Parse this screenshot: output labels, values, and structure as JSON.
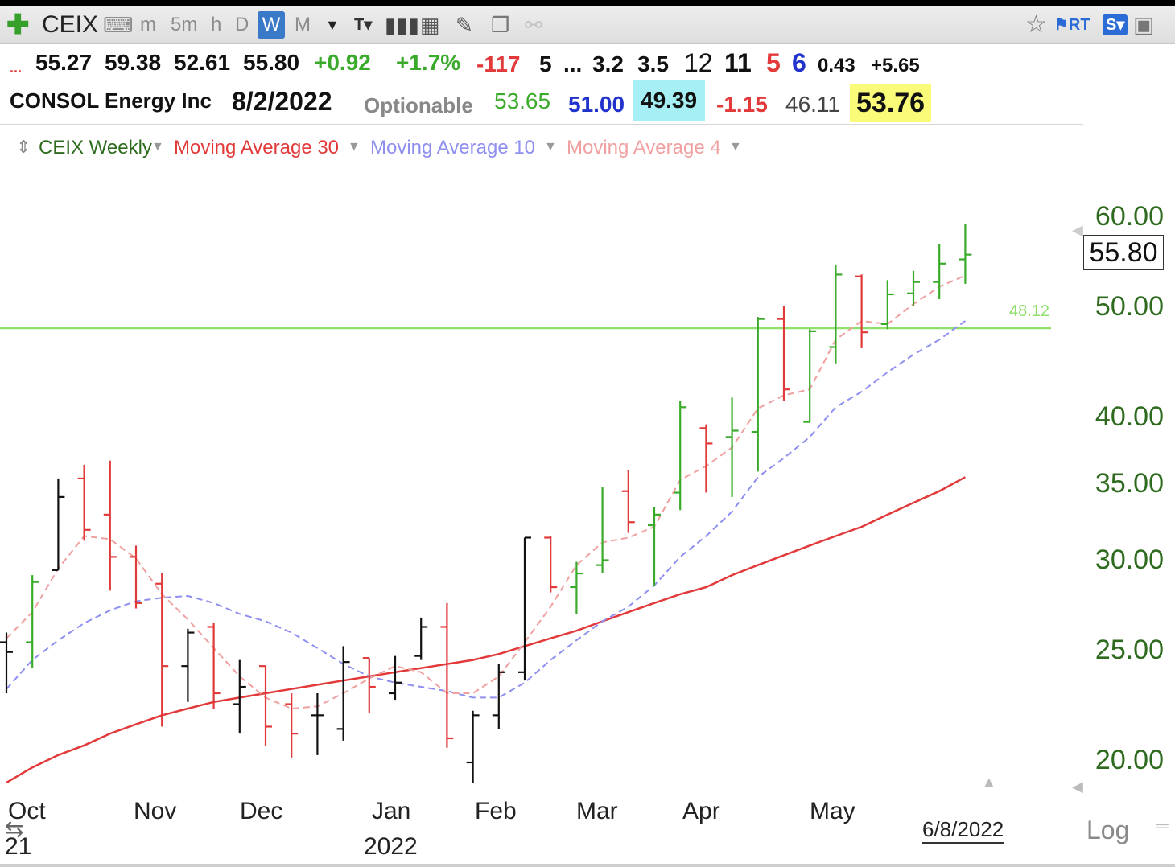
{
  "toolbar": {
    "symbol": "CEIX",
    "intervals": [
      "m",
      "5m",
      "h",
      "D",
      "W",
      "M"
    ],
    "selected_interval": "W",
    "accent": "#3a78c8"
  },
  "quote": {
    "ellipsis_red": "...",
    "open": "55.27",
    "high": "59.38",
    "low": "52.61",
    "close": "55.80",
    "change": "+0.92",
    "change_pct": "+1.7%",
    "v1": "-117",
    "v2": "5",
    "v3": "...",
    "v4": "3.2",
    "v5": "3.5",
    "v6": "12",
    "v7": "11",
    "v8": "5",
    "v9": "6",
    "v10": "0.43",
    "v11": "+5.65"
  },
  "company": {
    "name": "CONSOL Energy Inc",
    "date": "8/2/2022",
    "optionable": "Optionable",
    "f1": "53.65",
    "f2": "51.00",
    "f3": "49.39",
    "f4": "-1.15",
    "f5": "46.11",
    "f6": "53.76"
  },
  "legend": {
    "series": "CEIX Weekly",
    "ma30": "Moving Average 30",
    "ma10": "Moving Average 10",
    "ma4": "Moving Average 4"
  },
  "chart_data": {
    "type": "line",
    "scale": "log",
    "ylim": [
      19,
      62
    ],
    "y_ticks": [
      "60.00",
      "50.00",
      "40.00",
      "35.00",
      "30.00",
      "25.00",
      "20.00"
    ],
    "last_price": "55.80",
    "green_line": {
      "value": 48.12,
      "label": "48.12"
    },
    "x_labels": [
      "Oct",
      "Nov",
      "Dec",
      "Jan",
      "Feb",
      "Mar",
      "Apr",
      "May"
    ],
    "x_year_labels": [
      "21",
      "2022"
    ],
    "end_date_label": "6/8/2022",
    "log_button": "Log",
    "colors": {
      "up": "#3aaa2a",
      "down": "#e23a3a",
      "neutral": "#111111",
      "ma30": "#e23a3a",
      "ma10": "#8f8ff0",
      "ma4": "#f0a0a0",
      "green_line": "#8fdf6c"
    },
    "bars": [
      {
        "c": "neutral",
        "o": 25.5,
        "h": 26.0,
        "l": 23.0,
        "cl": 25.0
      },
      {
        "c": "up",
        "o": 25.5,
        "h": 29.2,
        "l": 24.2,
        "cl": 28.8
      },
      {
        "c": "neutral",
        "o": 29.5,
        "h": 35.5,
        "l": 29.5,
        "cl": 34.2
      },
      {
        "c": "down",
        "o": 35.5,
        "h": 36.5,
        "l": 31.3,
        "cl": 32.0
      },
      {
        "c": "down",
        "o": 33.0,
        "h": 36.8,
        "l": 28.3,
        "cl": 30.3
      },
      {
        "c": "down",
        "o": 30.3,
        "h": 31.0,
        "l": 27.3,
        "cl": 27.6
      },
      {
        "c": "down",
        "o": 28.7,
        "h": 29.3,
        "l": 21.5,
        "cl": 24.3
      },
      {
        "c": "neutral",
        "o": 24.3,
        "h": 26.2,
        "l": 22.6,
        "cl": 26.0
      },
      {
        "c": "down",
        "o": 26.3,
        "h": 26.5,
        "l": 22.3,
        "cl": 23.0
      },
      {
        "c": "neutral",
        "o": 22.5,
        "h": 24.6,
        "l": 21.2,
        "cl": 23.3
      },
      {
        "c": "down",
        "o": 24.3,
        "h": 24.3,
        "l": 20.7,
        "cl": 21.5
      },
      {
        "c": "down",
        "o": 22.5,
        "h": 23.0,
        "l": 20.2,
        "cl": 21.2
      },
      {
        "c": "neutral",
        "o": 22.0,
        "h": 23.0,
        "l": 20.3,
        "cl": 22.0
      },
      {
        "c": "neutral",
        "o": 21.4,
        "h": 25.3,
        "l": 20.9,
        "cl": 24.5
      },
      {
        "c": "down",
        "o": 24.7,
        "h": 24.7,
        "l": 22.1,
        "cl": 23.3
      },
      {
        "c": "neutral",
        "o": 23.0,
        "h": 24.8,
        "l": 22.7,
        "cl": 23.5
      },
      {
        "c": "neutral",
        "o": 24.8,
        "h": 26.8,
        "l": 24.6,
        "cl": 26.3
      },
      {
        "c": "down",
        "o": 26.3,
        "h": 27.6,
        "l": 20.6,
        "cl": 21.0
      },
      {
        "c": "neutral",
        "o": 20.0,
        "h": 22.2,
        "l": 19.2,
        "cl": 22.0
      },
      {
        "c": "neutral",
        "o": 22.0,
        "h": 24.4,
        "l": 21.4,
        "cl": 24.0
      },
      {
        "c": "neutral",
        "o": 24.0,
        "h": 31.5,
        "l": 23.6,
        "cl": 31.5
      },
      {
        "c": "down",
        "o": 31.5,
        "h": 31.6,
        "l": 28.2,
        "cl": 28.5
      },
      {
        "c": "up",
        "o": 28.5,
        "h": 30.0,
        "l": 27.0,
        "cl": 29.3
      },
      {
        "c": "up",
        "o": 29.8,
        "h": 34.9,
        "l": 29.3,
        "cl": 30.1
      },
      {
        "c": "down",
        "o": 34.6,
        "h": 36.1,
        "l": 31.8,
        "cl": 32.5
      },
      {
        "c": "up",
        "o": 32.3,
        "h": 33.5,
        "l": 28.6,
        "cl": 33.0
      },
      {
        "c": "up",
        "o": 34.5,
        "h": 41.5,
        "l": 33.3,
        "cl": 41.0
      },
      {
        "c": "down",
        "o": 39.3,
        "h": 39.6,
        "l": 34.5,
        "cl": 38.1
      },
      {
        "c": "up",
        "o": 38.6,
        "h": 41.8,
        "l": 34.2,
        "cl": 39.1
      },
      {
        "c": "up",
        "o": 39.0,
        "h": 49.2,
        "l": 36.0,
        "cl": 49.0
      },
      {
        "c": "down",
        "o": 49.0,
        "h": 50.3,
        "l": 41.5,
        "cl": 42.5
      },
      {
        "c": "up",
        "o": 39.8,
        "h": 48.0,
        "l": 39.8,
        "cl": 47.8
      },
      {
        "c": "up",
        "o": 46.3,
        "h": 54.6,
        "l": 44.8,
        "cl": 53.6
      },
      {
        "c": "down",
        "o": 53.4,
        "h": 53.6,
        "l": 46.2,
        "cl": 47.7
      },
      {
        "c": "up",
        "o": 48.5,
        "h": 53.0,
        "l": 48.0,
        "cl": 51.5
      },
      {
        "c": "up",
        "o": 51.6,
        "h": 54.0,
        "l": 50.3,
        "cl": 52.8
      },
      {
        "c": "up",
        "o": 52.8,
        "h": 57.0,
        "l": 51.0,
        "cl": 54.8
      },
      {
        "c": "up",
        "o": 55.27,
        "h": 59.38,
        "l": 52.61,
        "cl": 55.8
      }
    ],
    "ma4": [
      25.7,
      27.1,
      29.6,
      31.6,
      31.4,
      30.2,
      28.1,
      26.7,
      25.2,
      23.8,
      22.8,
      22.3,
      22.4,
      23.0,
      23.7,
      24.3,
      24.0,
      23.0,
      23.0,
      23.8,
      25.5,
      27.4,
      29.8,
      31.2,
      31.5,
      32.2,
      35.4,
      36.4,
      37.8,
      40.9,
      42.0,
      42.5,
      47.0,
      48.8,
      48.5,
      50.5,
      52.3,
      53.5
    ],
    "ma10": [
      23.2,
      24.6,
      25.6,
      26.5,
      27.2,
      27.7,
      27.9,
      28.0,
      27.6,
      27.0,
      26.6,
      26.0,
      25.2,
      24.4,
      23.8,
      23.5,
      23.3,
      23.1,
      22.8,
      22.8,
      23.5,
      24.6,
      25.6,
      26.6,
      27.4,
      28.6,
      30.3,
      31.6,
      33.2,
      35.6,
      37.0,
      38.6,
      41.0,
      42.3,
      44.0,
      45.6,
      47.0,
      48.8
    ],
    "ma30": [
      19.2,
      19.8,
      20.3,
      20.7,
      21.2,
      21.6,
      22.0,
      22.3,
      22.6,
      22.8,
      23.0,
      23.2,
      23.4,
      23.6,
      23.8,
      24.0,
      24.2,
      24.4,
      24.6,
      24.9,
      25.3,
      25.7,
      26.1,
      26.6,
      27.1,
      27.6,
      28.1,
      28.5,
      29.2,
      29.8,
      30.4,
      31.0,
      31.6,
      32.2,
      33.0,
      33.8,
      34.6,
      35.6
    ]
  }
}
